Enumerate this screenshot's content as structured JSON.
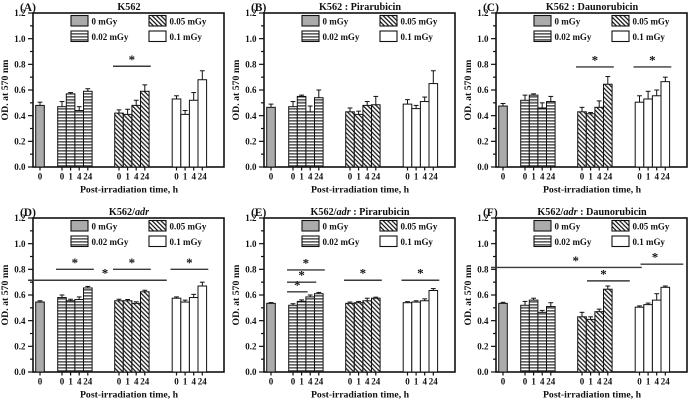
{
  "figure": {
    "ylabel": "OD. at 570 nm",
    "xlabel": "Post-irradiation time, h",
    "legend": [
      {
        "label": "0 mGy",
        "fill": "solid-gray"
      },
      {
        "label": "0.02 mGy",
        "fill": "horizontal-lines"
      },
      {
        "label": "0.05 mGy",
        "fill": "diagonal-lines"
      },
      {
        "label": "0.1 mGy",
        "fill": "open-white"
      }
    ],
    "colors": {
      "bar_gray": "#ababab",
      "ink": "#111111",
      "sig_line": "#3a3a3a",
      "background": "#ffffff"
    }
  },
  "chart_data": [
    {
      "type": "bar",
      "panel_label": "(A)",
      "title_parts": [
        {
          "text": "K562",
          "italic": false
        }
      ],
      "ylim": [
        0,
        1.2
      ],
      "yticks": [
        0,
        0.2,
        0.4,
        0.6,
        0.8,
        1.0,
        1.2
      ],
      "groups": [
        {
          "name": "0 mGy",
          "fill": "solid-gray",
          "x_labels": [
            "0"
          ],
          "values": [
            0.48
          ],
          "errors": [
            0.025
          ]
        },
        {
          "name": "0.02 mGy",
          "fill": "horizontal-lines",
          "x_labels": [
            "0",
            "1",
            "4",
            "24"
          ],
          "values": [
            0.47,
            0.57,
            0.44,
            0.59
          ],
          "errors": [
            0.04,
            0.01,
            0.03,
            0.02
          ]
        },
        {
          "name": "0.05 mGy",
          "fill": "diagonal-lines",
          "x_labels": [
            "0",
            "1",
            "4",
            "24"
          ],
          "values": [
            0.42,
            0.41,
            0.48,
            0.59
          ],
          "errors": [
            0.025,
            0.04,
            0.04,
            0.05
          ]
        },
        {
          "name": "0.1 mGy",
          "fill": "open-white",
          "x_labels": [
            "0",
            "1",
            "4",
            "24"
          ],
          "values": [
            0.53,
            0.41,
            0.52,
            0.68
          ],
          "errors": [
            0.025,
            0.03,
            0.06,
            0.07
          ]
        }
      ],
      "significance": [
        {
          "from": 5,
          "to": 8,
          "y": 0.785,
          "star_at": 6.5,
          "label": "*"
        }
      ]
    },
    {
      "type": "bar",
      "panel_label": "(B)",
      "title_parts": [
        {
          "text": "K562 : Pirarubicin",
          "italic": false
        }
      ],
      "ylim": [
        0,
        1.2
      ],
      "yticks": [
        0,
        0.2,
        0.4,
        0.6,
        0.8,
        1.0,
        1.2
      ],
      "groups": [
        {
          "name": "0 mGy",
          "fill": "solid-gray",
          "x_labels": [
            "0"
          ],
          "values": [
            0.465
          ],
          "errors": [
            0.025
          ]
        },
        {
          "name": "0.02 mGy",
          "fill": "horizontal-lines",
          "x_labels": [
            "0",
            "1",
            "4",
            "24"
          ],
          "values": [
            0.47,
            0.55,
            0.43,
            0.54
          ],
          "errors": [
            0.04,
            0.01,
            0.045,
            0.06
          ]
        },
        {
          "name": "0.05 mGy",
          "fill": "diagonal-lines",
          "x_labels": [
            "0",
            "1",
            "4",
            "24"
          ],
          "values": [
            0.43,
            0.41,
            0.48,
            0.485
          ],
          "errors": [
            0.03,
            0.025,
            0.03,
            0.065
          ]
        },
        {
          "name": "0.1 mGy",
          "fill": "open-white",
          "x_labels": [
            "0",
            "1",
            "4",
            "24"
          ],
          "values": [
            0.49,
            0.455,
            0.51,
            0.65
          ],
          "errors": [
            0.035,
            0.025,
            0.035,
            0.1
          ]
        }
      ],
      "significance": []
    },
    {
      "type": "bar",
      "panel_label": "(C)",
      "title_parts": [
        {
          "text": "K562 : Daunorubicin",
          "italic": false
        }
      ],
      "ylim": [
        0,
        1.2
      ],
      "yticks": [
        0,
        0.2,
        0.4,
        0.6,
        0.8,
        1.0,
        1.2
      ],
      "groups": [
        {
          "name": "0 mGy",
          "fill": "solid-gray",
          "x_labels": [
            "0"
          ],
          "values": [
            0.475
          ],
          "errors": [
            0.02
          ]
        },
        {
          "name": "0.02 mGy",
          "fill": "horizontal-lines",
          "x_labels": [
            "0",
            "1",
            "4",
            "24"
          ],
          "values": [
            0.52,
            0.56,
            0.46,
            0.51
          ],
          "errors": [
            0.04,
            0.01,
            0.04,
            0.04
          ]
        },
        {
          "name": "0.05 mGy",
          "fill": "diagonal-lines",
          "x_labels": [
            "0",
            "1",
            "4",
            "24"
          ],
          "values": [
            0.43,
            0.415,
            0.465,
            0.645
          ],
          "errors": [
            0.035,
            0.01,
            0.05,
            0.06
          ]
        },
        {
          "name": "0.1 mGy",
          "fill": "open-white",
          "x_labels": [
            "0",
            "1",
            "4",
            "24"
          ],
          "values": [
            0.505,
            0.53,
            0.555,
            0.665
          ],
          "errors": [
            0.05,
            0.06,
            0.045,
            0.035
          ]
        }
      ],
      "significance": [
        {
          "from": 5,
          "to": 8,
          "y": 0.78,
          "star_at": 6.5,
          "label": "*"
        },
        {
          "from": 9,
          "to": 12,
          "y": 0.78,
          "star_at": 10.5,
          "label": "*"
        }
      ]
    },
    {
      "type": "bar",
      "panel_label": "(D)",
      "title_parts": [
        {
          "text": "K562/",
          "italic": false
        },
        {
          "text": "adr",
          "italic": true
        }
      ],
      "ylim": [
        0,
        1.2
      ],
      "yticks": [
        0,
        0.2,
        0.4,
        0.6,
        0.8,
        1.0,
        1.2
      ],
      "groups": [
        {
          "name": "0 mGy",
          "fill": "solid-gray",
          "x_labels": [
            "0"
          ],
          "values": [
            0.545
          ],
          "errors": [
            0.01
          ]
        },
        {
          "name": "0.02 mGy",
          "fill": "horizontal-lines",
          "x_labels": [
            "0",
            "1",
            "4",
            "24"
          ],
          "values": [
            0.58,
            0.555,
            0.565,
            0.655
          ],
          "errors": [
            0.02,
            0.012,
            0.02,
            0.012
          ]
        },
        {
          "name": "0.05 mGy",
          "fill": "diagonal-lines",
          "x_labels": [
            "0",
            "1",
            "4",
            "24"
          ],
          "values": [
            0.555,
            0.555,
            0.535,
            0.625
          ],
          "errors": [
            0.012,
            0.01,
            0.012,
            0.012
          ]
        },
        {
          "name": "0.1 mGy",
          "fill": "open-white",
          "x_labels": [
            "0",
            "1",
            "4",
            "24"
          ],
          "values": [
            0.575,
            0.545,
            0.58,
            0.67
          ],
          "errors": [
            0.01,
            0.015,
            0.025,
            0.03
          ]
        }
      ],
      "significance": [
        {
          "from": 1,
          "to": 4,
          "y": 0.8,
          "star_at": 2.5,
          "label": "*"
        },
        {
          "from": 5,
          "to": 8,
          "y": 0.8,
          "star_at": 6.5,
          "label": "*"
        },
        {
          "from": 9,
          "to": 12,
          "y": 0.8,
          "star_at": 10.5,
          "label": "*"
        },
        {
          "from": 0,
          "to": 8,
          "y": 0.715,
          "star_at": 4.55,
          "label": "*",
          "x1_adj": -6,
          "x2_adj": 16
        }
      ]
    },
    {
      "type": "bar",
      "panel_label": "(E)",
      "title_parts": [
        {
          "text": "K562/",
          "italic": false
        },
        {
          "text": "adr",
          "italic": true
        },
        {
          "text": " : Pirarubicin",
          "italic": false
        }
      ],
      "ylim": [
        0,
        1.2
      ],
      "yticks": [
        0,
        0.2,
        0.4,
        0.6,
        0.8,
        1.0,
        1.2
      ],
      "groups": [
        {
          "name": "0 mGy",
          "fill": "solid-gray",
          "x_labels": [
            "0"
          ],
          "values": [
            0.535
          ],
          "errors": [
            0.006
          ]
        },
        {
          "name": "0.02 mGy",
          "fill": "horizontal-lines",
          "x_labels": [
            "0",
            "1",
            "4",
            "24"
          ],
          "values": [
            0.52,
            0.55,
            0.585,
            0.61
          ],
          "errors": [
            0.012,
            0.012,
            0.015,
            0.01
          ]
        },
        {
          "name": "0.05 mGy",
          "fill": "diagonal-lines",
          "x_labels": [
            "0",
            "1",
            "4",
            "24"
          ],
          "values": [
            0.535,
            0.54,
            0.555,
            0.575
          ],
          "errors": [
            0.01,
            0.01,
            0.02,
            0.008
          ]
        },
        {
          "name": "0.1 mGy",
          "fill": "open-white",
          "x_labels": [
            "0",
            "1",
            "4",
            "24"
          ],
          "values": [
            0.54,
            0.545,
            0.555,
            0.635
          ],
          "errors": [
            0.008,
            0.01,
            0.015,
            0.015
          ]
        }
      ],
      "significance": [
        {
          "from": 1,
          "to": 2,
          "y": 0.625,
          "star_at": 1.5,
          "label": "*"
        },
        {
          "from": 1,
          "to": 3,
          "y": 0.7,
          "star_at": 2,
          "label": "*"
        },
        {
          "from": 1,
          "to": 4,
          "y": 0.795,
          "star_at": 2.5,
          "label": "*"
        },
        {
          "from": 5,
          "to": 8,
          "y": 0.715,
          "star_at": 6.5,
          "label": "*"
        },
        {
          "from": 9,
          "to": 12,
          "y": 0.715,
          "star_at": 10.5,
          "label": "*"
        }
      ]
    },
    {
      "type": "bar",
      "panel_label": "(F)",
      "title_parts": [
        {
          "text": "K562/",
          "italic": false
        },
        {
          "text": "adr",
          "italic": true
        },
        {
          "text": " : Daunorubicin",
          "italic": false
        }
      ],
      "ylim": [
        0,
        1.2
      ],
      "yticks": [
        0,
        0.2,
        0.4,
        0.6,
        0.8,
        1.0,
        1.2
      ],
      "groups": [
        {
          "name": "0 mGy",
          "fill": "solid-gray",
          "x_labels": [
            "0"
          ],
          "values": [
            0.535
          ],
          "errors": [
            0.008
          ]
        },
        {
          "name": "0.02 mGy",
          "fill": "horizontal-lines",
          "x_labels": [
            "0",
            "1",
            "4",
            "24"
          ],
          "values": [
            0.52,
            0.56,
            0.465,
            0.51
          ],
          "errors": [
            0.03,
            0.015,
            0.015,
            0.03
          ]
        },
        {
          "name": "0.05 mGy",
          "fill": "diagonal-lines",
          "x_labels": [
            "0",
            "1",
            "4",
            "24"
          ],
          "values": [
            0.43,
            0.41,
            0.47,
            0.645
          ],
          "errors": [
            0.035,
            0.02,
            0.02,
            0.025
          ]
        },
        {
          "name": "0.1 mGy",
          "fill": "open-white",
          "x_labels": [
            "0",
            "1",
            "4",
            "24"
          ],
          "values": [
            0.505,
            0.525,
            0.56,
            0.66
          ],
          "errors": [
            0.01,
            0.012,
            0.05,
            0.01
          ]
        }
      ],
      "significance": [
        {
          "from": 0,
          "to": 8,
          "y": 0.815,
          "star_at": 4.8,
          "label": "*",
          "x1_adj": -6,
          "x2_adj": 28
        },
        {
          "from": 5,
          "to": 8,
          "y": 0.71,
          "star_at": 7.5,
          "label": "*",
          "x1_adj": 11,
          "x2_adj": 16
        },
        {
          "from": 9,
          "to": 12,
          "y": 0.84,
          "star_at": 10.8,
          "label": "*",
          "x1_adj": 7,
          "x2_adj": 12
        }
      ]
    }
  ]
}
